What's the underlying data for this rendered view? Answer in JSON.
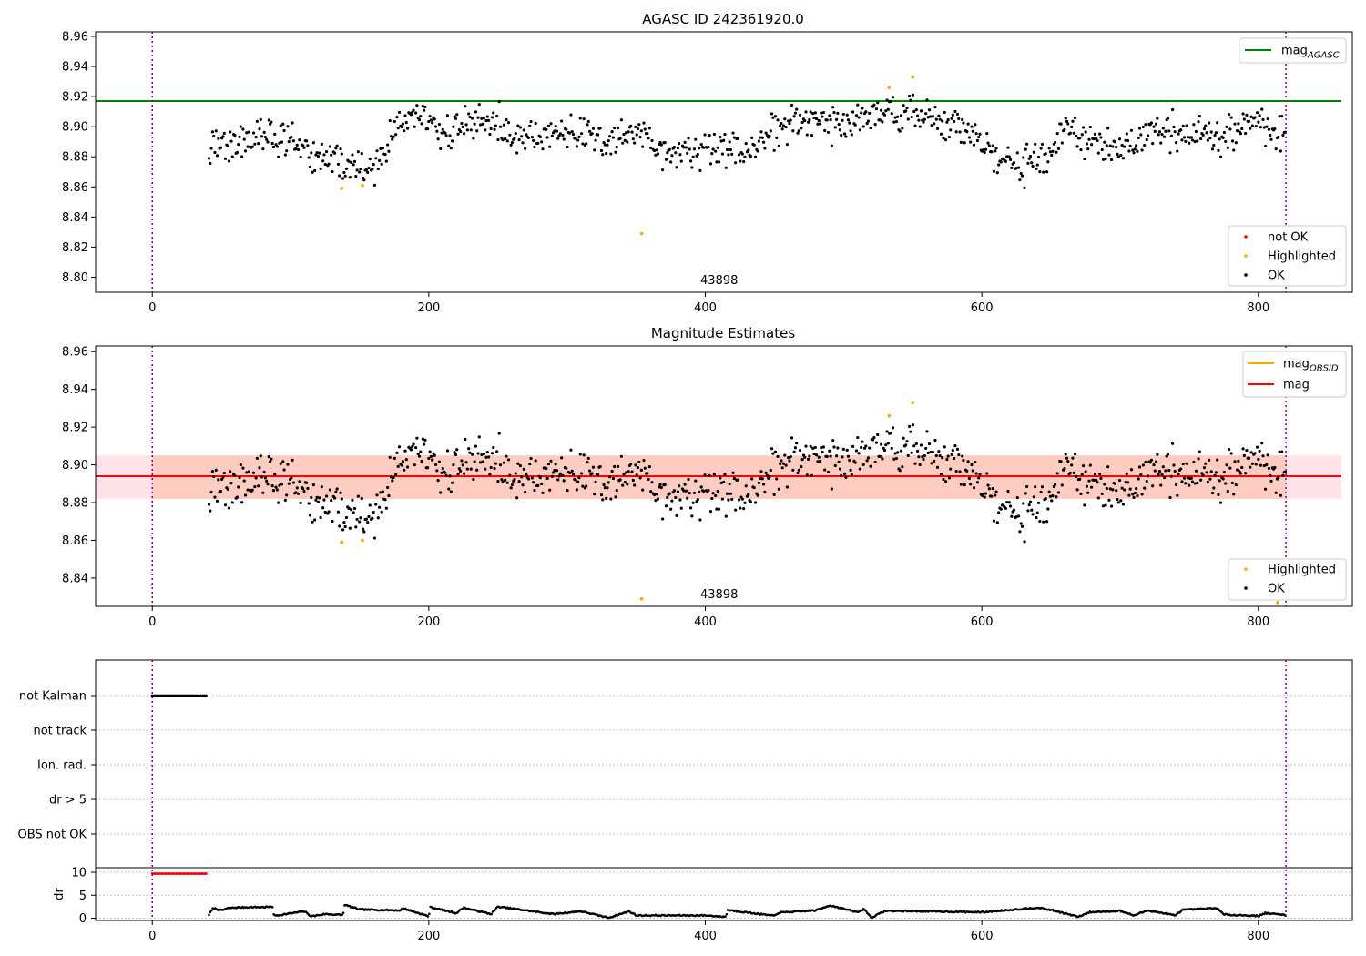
{
  "chart_data": [
    {
      "type": "scatter",
      "title": "AGASC ID 242361920.0",
      "x_range": [
        -41,
        868
      ],
      "xticks": [
        0,
        200,
        400,
        600,
        800
      ],
      "ylim": [
        8.79,
        8.963
      ],
      "yticks": [
        8.8,
        8.82,
        8.84,
        8.86,
        8.88,
        8.9,
        8.92,
        8.94,
        8.96
      ],
      "ytick_labels": [
        "8.80",
        "8.82",
        "8.84",
        "8.86",
        "8.88",
        "8.90",
        "8.92",
        "8.94",
        "8.96"
      ],
      "obsid_label": "43898",
      "obsid_label_x": 410,
      "obs_bounds": [
        0,
        820
      ],
      "reference_line": {
        "name": "mag_{AGASC}",
        "label_main": "mag",
        "label_sub": "AGASC",
        "value": 8.917,
        "x_range": [
          -41,
          860
        ],
        "color": "#008000"
      },
      "legend_lines": [
        {
          "label_main": "mag",
          "label_sub": "AGASC",
          "color": "#008000"
        }
      ],
      "legend_points": [
        {
          "label": "not OK",
          "color": "#ff0000"
        },
        {
          "label": "Highlighted",
          "color": "#ffa500"
        },
        {
          "label": "OK",
          "color": "#000000"
        }
      ],
      "highlighted_points": [
        {
          "x": 137,
          "y": 8.859
        },
        {
          "x": 152,
          "y": 8.861
        },
        {
          "x": 354,
          "y": 8.829
        },
        {
          "x": 533,
          "y": 8.926
        },
        {
          "x": 550,
          "y": 8.933
        },
        {
          "x": 815,
          "y": 8.819
        }
      ],
      "ok_series_outline": [
        [
          41,
          8.886
        ],
        [
          60,
          8.889
        ],
        [
          80,
          8.893
        ],
        [
          100,
          8.891
        ],
        [
          110,
          8.882
        ],
        [
          130,
          8.879
        ],
        [
          150,
          8.871
        ],
        [
          160,
          8.872
        ],
        [
          175,
          8.896
        ],
        [
          190,
          8.909
        ],
        [
          210,
          8.895
        ],
        [
          240,
          8.905
        ],
        [
          260,
          8.895
        ],
        [
          280,
          8.893
        ],
        [
          300,
          8.898
        ],
        [
          330,
          8.889
        ],
        [
          350,
          8.896
        ],
        [
          370,
          8.884
        ],
        [
          400,
          8.884
        ],
        [
          430,
          8.884
        ],
        [
          450,
          8.896
        ],
        [
          475,
          8.909
        ],
        [
          500,
          8.897
        ],
        [
          520,
          8.91
        ],
        [
          545,
          8.911
        ],
        [
          570,
          8.902
        ],
        [
          590,
          8.899
        ],
        [
          605,
          8.882
        ],
        [
          625,
          8.872
        ],
        [
          645,
          8.882
        ],
        [
          660,
          8.897
        ],
        [
          680,
          8.889
        ],
        [
          700,
          8.884
        ],
        [
          720,
          8.896
        ],
        [
          745,
          8.896
        ],
        [
          765,
          8.893
        ],
        [
          785,
          8.899
        ],
        [
          800,
          8.905
        ],
        [
          820,
          8.892
        ]
      ]
    },
    {
      "type": "scatter",
      "title": "Magnitude Estimates",
      "x_range": [
        -41,
        868
      ],
      "xticks": [
        0,
        200,
        400,
        600,
        800
      ],
      "ylim": [
        8.825,
        8.963
      ],
      "yticks": [
        8.84,
        8.86,
        8.88,
        8.9,
        8.92,
        8.94,
        8.96
      ],
      "ytick_labels": [
        "8.84",
        "8.86",
        "8.88",
        "8.90",
        "8.92",
        "8.94",
        "8.96"
      ],
      "obsid_label": "43898",
      "obsid_label_x": 410,
      "obs_bounds": [
        0,
        820
      ],
      "mean_line": {
        "label": "mag",
        "value": 8.894,
        "x_range": [
          -41,
          860
        ],
        "color": "#ff0000"
      },
      "band_outer": {
        "low": 8.882,
        "high": 8.905,
        "x_range": [
          -41,
          860
        ],
        "color": "#ffc0cb"
      },
      "band_inner": {
        "low": 8.882,
        "high": 8.905,
        "x_range": [
          0,
          820
        ],
        "color": "#ffa07a"
      },
      "obsid_line": {
        "label_main": "mag",
        "label_sub": "OBSID",
        "value": 8.894,
        "color": "#ffa500"
      },
      "legend_lines": [
        {
          "label_main": "mag",
          "label_sub": "OBSID",
          "color": "#ffa500"
        },
        {
          "label_main": "mag",
          "label_sub": "",
          "color": "#ff0000"
        }
      ],
      "legend_points": [
        {
          "label": "Highlighted",
          "color": "#ffa500"
        },
        {
          "label": "OK",
          "color": "#000000"
        }
      ],
      "highlighted_points": [
        {
          "x": 137,
          "y": 8.859
        },
        {
          "x": 152,
          "y": 8.86
        },
        {
          "x": 354,
          "y": 8.829
        },
        {
          "x": 533,
          "y": 8.926
        },
        {
          "x": 550,
          "y": 8.933
        },
        {
          "x": 814,
          "y": 8.827
        }
      ]
    },
    {
      "type": "scatter",
      "x_range": [
        -41,
        868
      ],
      "xticks": [
        0,
        200,
        400,
        600,
        800
      ],
      "obs_bounds": [
        0,
        820
      ],
      "flag_rows": [
        "not Kalman",
        "not track",
        "Ion. rad.",
        "dr > 5",
        "OBS not OK"
      ],
      "flagged": {
        "row": "not Kalman",
        "x_from": 0,
        "x_to": 40
      },
      "dr_panel": {
        "ylabel": "dr",
        "ylim": [
          -0.5,
          11
        ],
        "yticks": [
          0,
          5,
          10
        ],
        "ytick_labels": [
          "0",
          "5",
          "10"
        ],
        "red_points": {
          "x_from": 0,
          "x_to": 40,
          "y": 9.7
        },
        "dr_outline": [
          [
            41,
            0.8
          ],
          [
            44,
            2.2
          ],
          [
            50,
            1.7
          ],
          [
            55,
            2.2
          ],
          [
            60,
            2.3
          ],
          [
            70,
            2.4
          ],
          [
            80,
            2.4
          ],
          [
            87,
            2.5
          ],
          [
            88,
            0.5
          ],
          [
            110,
            1.5
          ],
          [
            115,
            0.4
          ],
          [
            125,
            0.9
          ],
          [
            138,
            0.7
          ],
          [
            139,
            2.9
          ],
          [
            150,
            1.9
          ],
          [
            180,
            1.7
          ],
          [
            181,
            2.2
          ],
          [
            200,
            0.4
          ],
          [
            201,
            2.4
          ],
          [
            220,
            1.1
          ],
          [
            225,
            2.3
          ],
          [
            245,
            0.9
          ],
          [
            250,
            2.5
          ],
          [
            290,
            0.9
          ],
          [
            310,
            1.5
          ],
          [
            330,
            0.1
          ],
          [
            345,
            1.5
          ],
          [
            350,
            0.6
          ],
          [
            400,
            0.6
          ],
          [
            415,
            0.3
          ],
          [
            416,
            1.8
          ],
          [
            450,
            0.5
          ],
          [
            453,
            1.2
          ],
          [
            480,
            1.7
          ],
          [
            490,
            2.8
          ],
          [
            510,
            1.3
          ],
          [
            515,
            2.0
          ],
          [
            520,
            0.1
          ],
          [
            530,
            1.6
          ],
          [
            560,
            1.5
          ],
          [
            600,
            1.3
          ],
          [
            640,
            2.3
          ],
          [
            650,
            1.8
          ],
          [
            670,
            0.3
          ],
          [
            678,
            1.3
          ],
          [
            700,
            1.6
          ],
          [
            710,
            0.6
          ],
          [
            720,
            1.7
          ],
          [
            740,
            0.6
          ],
          [
            745,
            1.8
          ],
          [
            770,
            2.2
          ],
          [
            775,
            0.8
          ],
          [
            800,
            0.5
          ],
          [
            805,
            1.1
          ],
          [
            820,
            0.7
          ]
        ]
      }
    }
  ]
}
